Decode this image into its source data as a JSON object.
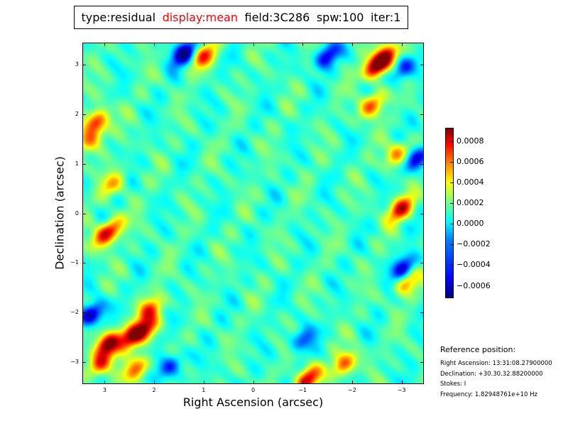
{
  "title": {
    "type": "type:residual",
    "display": "display:mean",
    "field": "field:3C286",
    "spw": "spw:100",
    "iter": "iter:1"
  },
  "chart_data": {
    "type": "heatmap",
    "colormap": "jet",
    "xlabel": "Right Ascension (arcsec)",
    "ylabel": "Declination (arcsec)",
    "xlim": [
      3.45,
      -3.45
    ],
    "ylim": [
      -3.45,
      3.45
    ],
    "x_ticks": [
      3,
      2,
      1,
      0,
      -1,
      -2,
      -3
    ],
    "x_tick_labels": [
      "3",
      "2",
      "1",
      "0",
      "−1",
      "−2",
      "−3"
    ],
    "y_ticks": [
      3,
      2,
      1,
      0,
      -1,
      -2,
      -3
    ],
    "y_tick_labels": [
      "3",
      "2",
      "1",
      "0",
      "−1",
      "−2",
      "−3"
    ],
    "color_range": [
      -0.00072,
      0.00093
    ],
    "colorbar_ticks": [
      0.0008,
      0.0006,
      0.0004,
      0.0002,
      0.0,
      -0.0002,
      -0.0004,
      -0.0006
    ],
    "colorbar_tick_labels": [
      "0.0008",
      "0.0006",
      "0.0004",
      "0.0002",
      "0.0000",
      "−0.0002",
      "−0.0004",
      "−0.0006"
    ],
    "peaks": [
      {
        "x": -2.5,
        "y": 3.0,
        "value": 0.00093
      },
      {
        "x": -2.7,
        "y": 3.2,
        "value": 0.0007
      },
      {
        "x": 1.0,
        "y": 3.2,
        "value": 0.0006
      },
      {
        "x": -2.4,
        "y": 2.2,
        "value": 0.0006
      },
      {
        "x": 3.2,
        "y": 1.85,
        "value": 0.0007
      },
      {
        "x": 3.3,
        "y": 1.5,
        "value": 0.0005
      },
      {
        "x": -3.0,
        "y": 0.1,
        "value": 0.0008
      },
      {
        "x": -2.9,
        "y": 1.2,
        "value": 0.0005
      },
      {
        "x": 2.95,
        "y": -2.65,
        "value": 0.00092
      },
      {
        "x": 2.5,
        "y": -2.5,
        "value": 0.0008
      },
      {
        "x": 2.2,
        "y": -2.35,
        "value": 0.0007
      },
      {
        "x": 3.1,
        "y": -3.05,
        "value": 0.0007
      },
      {
        "x": 2.35,
        "y": -3.15,
        "value": 0.0006
      },
      {
        "x": 2.1,
        "y": -1.95,
        "value": 0.0006
      },
      {
        "x": -1.1,
        "y": -3.35,
        "value": 0.0008
      },
      {
        "x": -1.85,
        "y": -3.05,
        "value": 0.0006
      },
      {
        "x": 3.05,
        "y": -0.45,
        "value": 0.0006
      },
      {
        "x": 2.85,
        "y": -0.3,
        "value": 0.0004
      },
      {
        "x": 2.85,
        "y": 0.6,
        "value": 0.0004
      },
      {
        "x": -3.1,
        "y": -1.4,
        "value": 0.0005
      }
    ],
    "troughs": [
      {
        "x": 1.4,
        "y": 3.25,
        "value": -0.00072
      },
      {
        "x": -1.5,
        "y": 3.2,
        "value": -0.0006
      },
      {
        "x": 3.3,
        "y": -2.05,
        "value": -0.00072
      },
      {
        "x": -3.05,
        "y": -1.1,
        "value": -0.0006
      },
      {
        "x": -3.3,
        "y": 1.1,
        "value": -0.0006
      },
      {
        "x": -3.05,
        "y": 2.95,
        "value": -0.0005
      },
      {
        "x": 1.7,
        "y": -3.1,
        "value": -0.0005
      },
      {
        "x": -1.0,
        "y": -2.55,
        "value": -0.0004
      }
    ]
  },
  "reference": {
    "heading": "Reference position:",
    "ra": "Right Ascension: 13:31:08.27900000",
    "dec": "Declination: +30.30.32.88200000",
    "stokes": "Stokes: I",
    "freq": "Frequency: 1.82948761e+10 Hz"
  }
}
